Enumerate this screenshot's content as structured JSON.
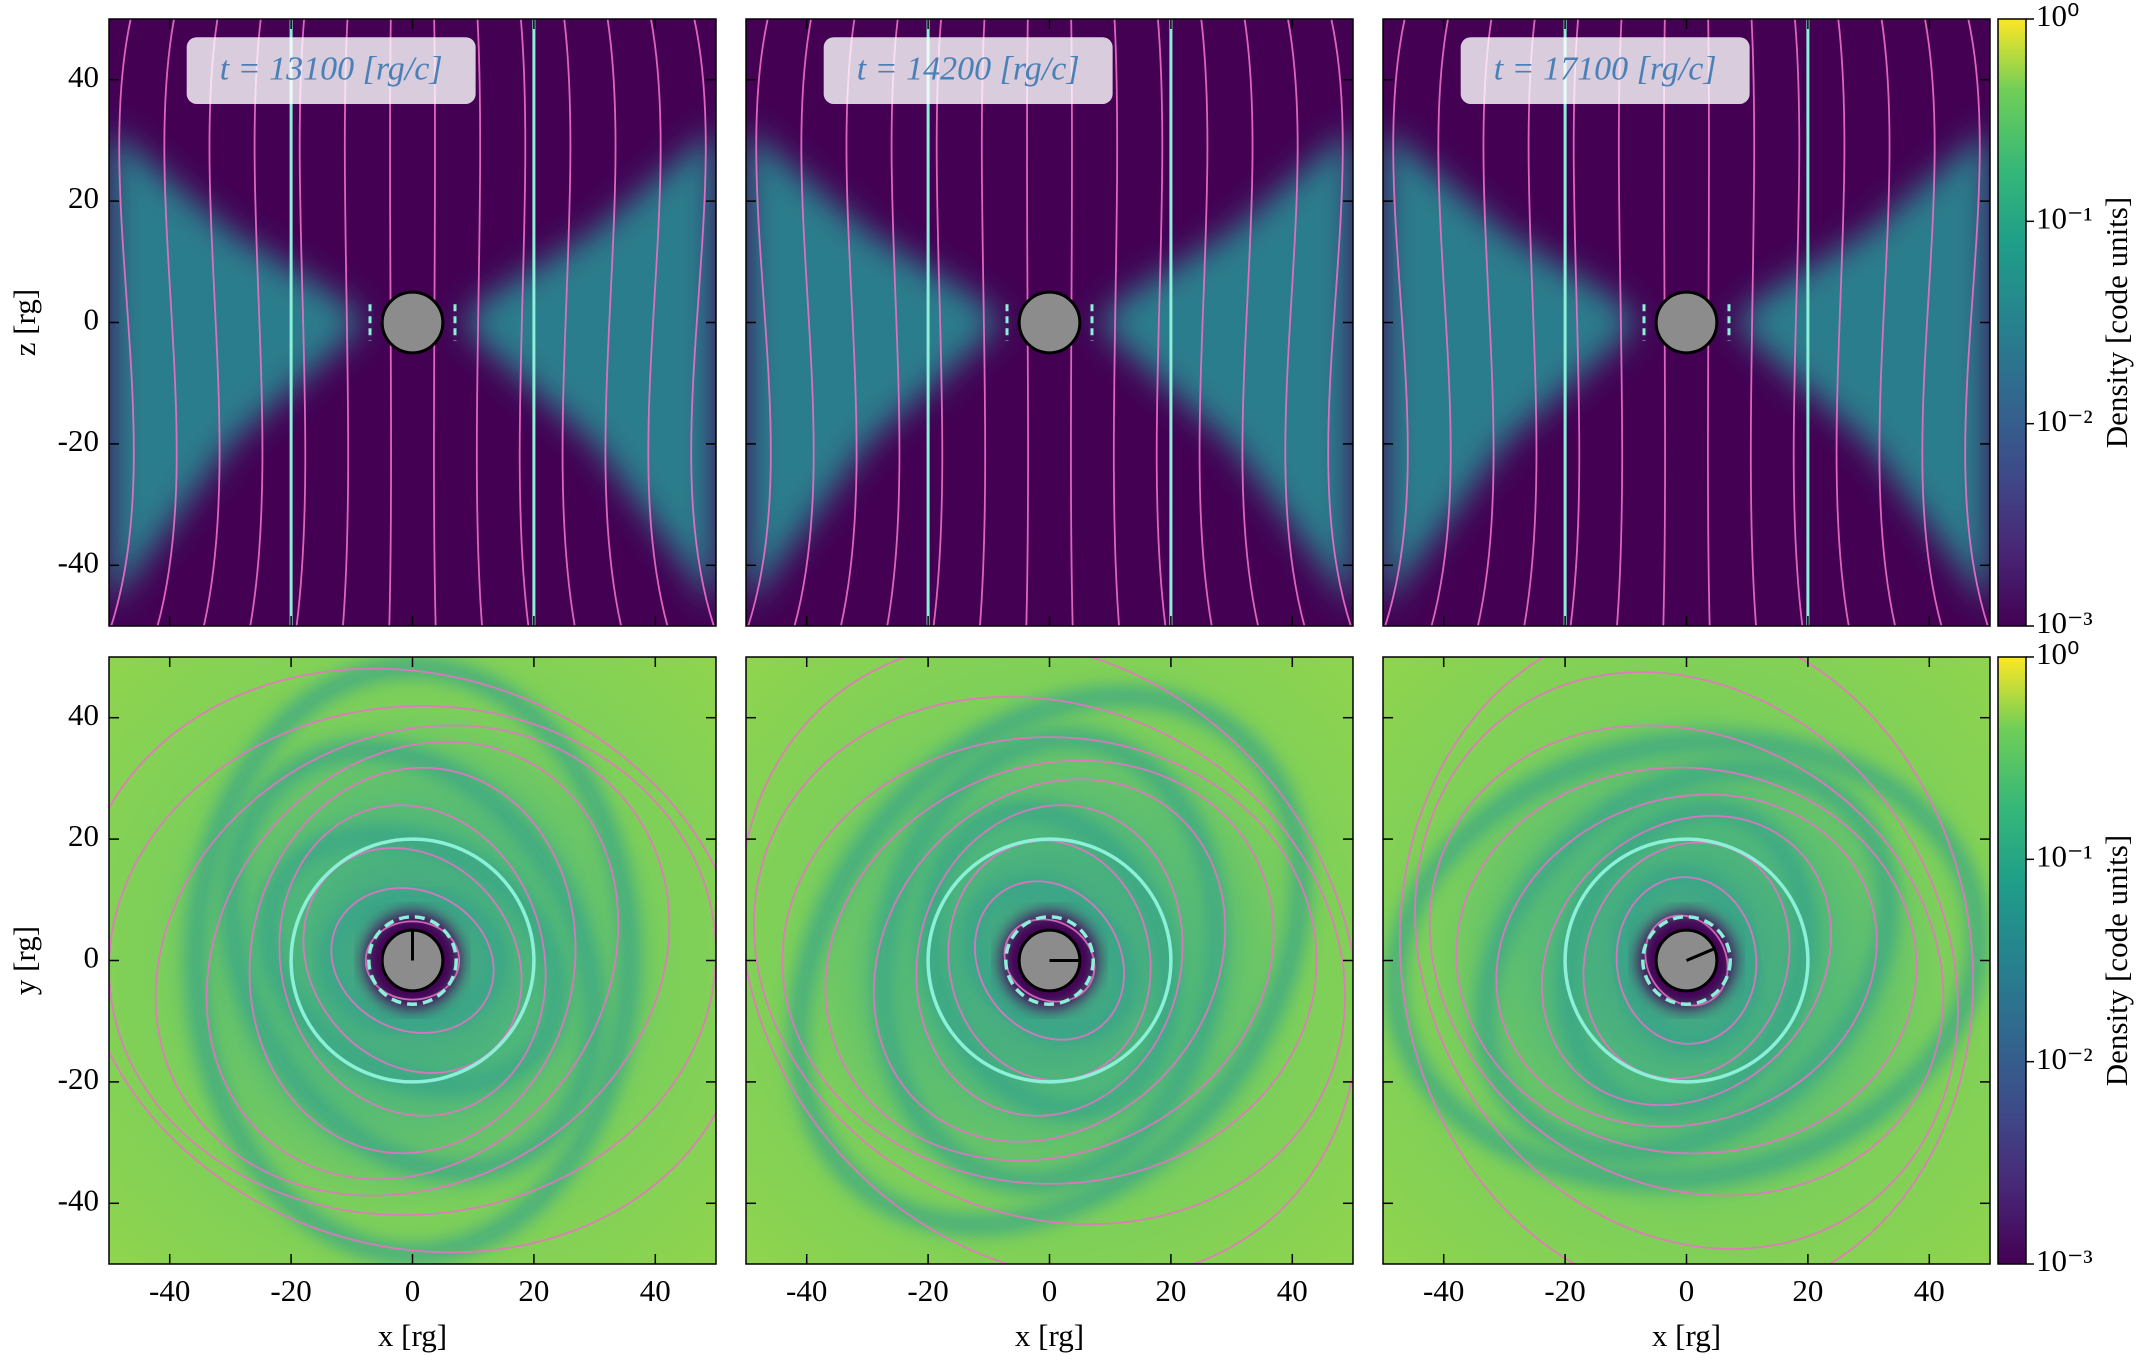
{
  "chart_data": [
    {
      "type": "heatmap",
      "view": "edge-on",
      "title": "t = 13100 [rg/c]",
      "ylabel": "z [rg]",
      "xlim": [
        -50,
        50
      ],
      "ylim": [
        -50,
        50
      ],
      "xticks": [
        -40,
        -20,
        0,
        20,
        40
      ],
      "yticks": [
        -40,
        -20,
        0,
        20,
        40
      ],
      "show_xtick_labels": false,
      "show_ytick_labels": true
    },
    {
      "type": "heatmap",
      "view": "edge-on",
      "title": "t = 14200 [rg/c]",
      "xlim": [
        -50,
        50
      ],
      "ylim": [
        -50,
        50
      ],
      "xticks": [
        -40,
        -20,
        0,
        20,
        40
      ],
      "yticks": [
        -40,
        -20,
        0,
        20,
        40
      ],
      "show_xtick_labels": false,
      "show_ytick_labels": false
    },
    {
      "type": "heatmap",
      "view": "edge-on",
      "title": "t = 17100 [rg/c]",
      "xlim": [
        -50,
        50
      ],
      "ylim": [
        -50,
        50
      ],
      "xticks": [
        -40,
        -20,
        0,
        20,
        40
      ],
      "yticks": [
        -40,
        -20,
        0,
        20,
        40
      ],
      "show_xtick_labels": false,
      "show_ytick_labels": false,
      "colorbar": {
        "label": "Density [code units]",
        "scale": "log",
        "lim": [
          0.001,
          1
        ],
        "ticks": [
          {
            "value": 0.001,
            "label": "10⁻³"
          },
          {
            "value": 0.01,
            "label": "10⁻²"
          },
          {
            "value": 0.1,
            "label": "10⁻¹"
          },
          {
            "value": 1,
            "label": "10⁰"
          }
        ]
      }
    },
    {
      "type": "heatmap",
      "view": "face-on",
      "xlabel": "x [rg]",
      "ylabel": "y [rg]",
      "xlim": [
        -50,
        50
      ],
      "ylim": [
        -50,
        50
      ],
      "xticks": [
        -40,
        -20,
        0,
        20,
        40
      ],
      "yticks": [
        -40,
        -20,
        0,
        20,
        40
      ],
      "show_xtick_labels": true,
      "show_ytick_labels": true
    },
    {
      "type": "heatmap",
      "view": "face-on",
      "xlabel": "x [rg]",
      "xlim": [
        -50,
        50
      ],
      "ylim": [
        -50,
        50
      ],
      "xticks": [
        -40,
        -20,
        0,
        20,
        40
      ],
      "yticks": [
        -40,
        -20,
        0,
        20,
        40
      ],
      "show_xtick_labels": true,
      "show_ytick_labels": false
    },
    {
      "type": "heatmap",
      "view": "face-on",
      "xlabel": "x [rg]",
      "xlim": [
        -50,
        50
      ],
      "ylim": [
        -50,
        50
      ],
      "xticks": [
        -40,
        -20,
        0,
        20,
        40
      ],
      "yticks": [
        -40,
        -20,
        0,
        20,
        40
      ],
      "show_xtick_labels": true,
      "show_ytick_labels": false,
      "colorbar": {
        "label": "Density [code units]",
        "scale": "log",
        "lim": [
          0.001,
          1
        ],
        "ticks": [
          {
            "value": 0.001,
            "label": "10⁻³"
          },
          {
            "value": 0.01,
            "label": "10⁻²"
          },
          {
            "value": 0.1,
            "label": "10⁻¹"
          },
          {
            "value": 1,
            "label": "10⁰"
          }
        ]
      }
    }
  ]
}
